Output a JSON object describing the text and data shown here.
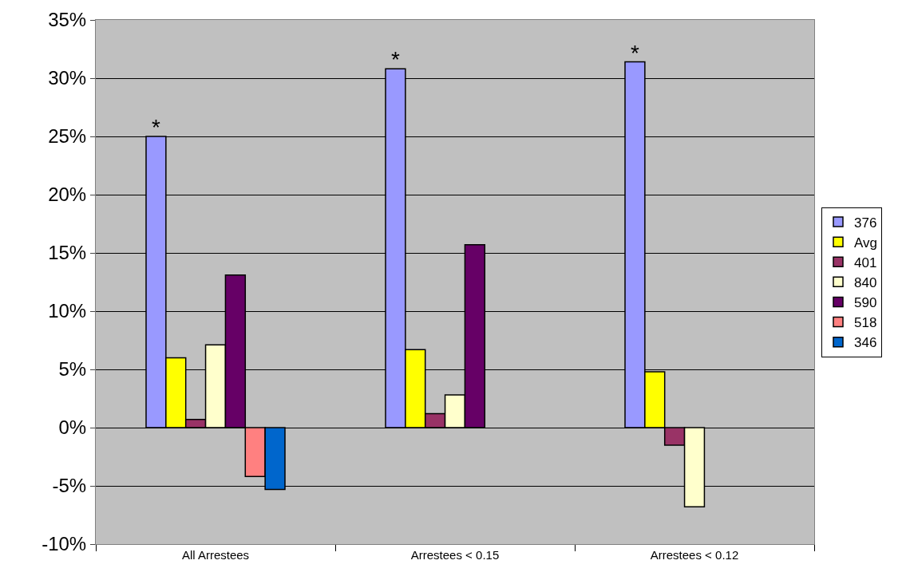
{
  "chart_data": {
    "type": "bar",
    "categories": [
      "All Arrestees",
      "Arrestees < 0.15",
      "Arrestees < 0.12"
    ],
    "series": [
      {
        "name": "376",
        "color": "#9999ff",
        "values": [
          25.0,
          30.8,
          31.4
        ]
      },
      {
        "name": "Avg",
        "color": "#ffff00",
        "values": [
          6.0,
          6.7,
          4.8
        ]
      },
      {
        "name": "401",
        "color": "#993366",
        "values": [
          0.7,
          1.2,
          -1.5
        ]
      },
      {
        "name": "840",
        "color": "#ffffcc",
        "values": [
          7.1,
          2.8,
          -6.8
        ]
      },
      {
        "name": "590",
        "color": "#660066",
        "values": [
          13.1,
          15.7,
          null
        ]
      },
      {
        "name": "518",
        "color": "#ff8080",
        "values": [
          -4.2,
          null,
          null
        ]
      },
      {
        "name": "346",
        "color": "#0066cc",
        "values": [
          -5.3,
          null,
          null
        ]
      }
    ],
    "ylim": [
      -10,
      35
    ],
    "yticks": [
      {
        "value": -10,
        "label": "-10%"
      },
      {
        "value": -5,
        "label": "-5%"
      },
      {
        "value": 0,
        "label": "0%"
      },
      {
        "value": 5,
        "label": "5%"
      },
      {
        "value": 10,
        "label": "10%"
      },
      {
        "value": 15,
        "label": "15%"
      },
      {
        "value": 20,
        "label": "20%"
      },
      {
        "value": 25,
        "label": "25%"
      },
      {
        "value": 30,
        "label": "30%"
      },
      {
        "value": 35,
        "label": "35%"
      }
    ],
    "annotations": [
      "*",
      "*",
      "*"
    ],
    "grid": "y",
    "legend": "right"
  }
}
